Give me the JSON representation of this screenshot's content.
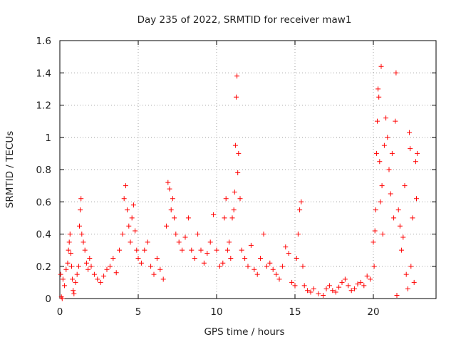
{
  "chart_data": {
    "type": "scatter",
    "title": "Day 235 of 2022, SRMTID for receiver maw1",
    "xlabel": "GPS time / hours",
    "ylabel": "SRMTID / TECUs",
    "xlim": [
      0,
      24
    ],
    "ylim": [
      0,
      1.6
    ],
    "xticks": [
      0,
      5,
      10,
      15,
      20
    ],
    "xtick_labels": [
      "0",
      "5",
      "10",
      "15",
      "20"
    ],
    "yticks": [
      0,
      0.2,
      0.4,
      0.6,
      0.8,
      1.0,
      1.2,
      1.4,
      1.6
    ],
    "ytick_labels": [
      "0",
      "0.2",
      "0.4",
      "0.6",
      "0.8",
      "1",
      "1.2",
      "1.4",
      "1.6"
    ],
    "grid": true,
    "marker": "plus",
    "color": "#ff0000",
    "series": [
      {
        "name": "maw1",
        "points": [
          [
            0.05,
            0.15
          ],
          [
            0.1,
            0.01
          ],
          [
            0.15,
            0.0
          ],
          [
            0.2,
            0.12
          ],
          [
            0.3,
            0.08
          ],
          [
            0.4,
            0.18
          ],
          [
            0.5,
            0.22
          ],
          [
            0.55,
            0.3
          ],
          [
            0.6,
            0.35
          ],
          [
            0.65,
            0.4
          ],
          [
            0.7,
            0.28
          ],
          [
            0.75,
            0.2
          ],
          [
            0.8,
            0.12
          ],
          [
            0.85,
            0.05
          ],
          [
            0.9,
            0.03
          ],
          [
            1.0,
            0.1
          ],
          [
            1.1,
            0.15
          ],
          [
            1.2,
            0.2
          ],
          [
            1.25,
            0.45
          ],
          [
            1.3,
            0.55
          ],
          [
            1.35,
            0.62
          ],
          [
            1.4,
            0.4
          ],
          [
            1.5,
            0.35
          ],
          [
            1.6,
            0.3
          ],
          [
            1.7,
            0.22
          ],
          [
            1.8,
            0.18
          ],
          [
            1.9,
            0.25
          ],
          [
            2.0,
            0.2
          ],
          [
            2.2,
            0.15
          ],
          [
            2.4,
            0.12
          ],
          [
            2.6,
            0.1
          ],
          [
            2.8,
            0.14
          ],
          [
            3.0,
            0.18
          ],
          [
            3.2,
            0.2
          ],
          [
            3.4,
            0.25
          ],
          [
            3.6,
            0.16
          ],
          [
            3.8,
            0.3
          ],
          [
            4.0,
            0.4
          ],
          [
            4.1,
            0.62
          ],
          [
            4.2,
            0.7
          ],
          [
            4.3,
            0.55
          ],
          [
            4.4,
            0.45
          ],
          [
            4.5,
            0.35
          ],
          [
            4.6,
            0.5
          ],
          [
            4.7,
            0.58
          ],
          [
            4.8,
            0.42
          ],
          [
            4.9,
            0.3
          ],
          [
            5.0,
            0.25
          ],
          [
            5.2,
            0.22
          ],
          [
            5.4,
            0.3
          ],
          [
            5.6,
            0.35
          ],
          [
            5.8,
            0.2
          ],
          [
            6.0,
            0.15
          ],
          [
            6.2,
            0.25
          ],
          [
            6.4,
            0.18
          ],
          [
            6.6,
            0.12
          ],
          [
            6.8,
            0.45
          ],
          [
            6.9,
            0.72
          ],
          [
            7.0,
            0.68
          ],
          [
            7.1,
            0.55
          ],
          [
            7.2,
            0.62
          ],
          [
            7.3,
            0.5
          ],
          [
            7.4,
            0.4
          ],
          [
            7.6,
            0.35
          ],
          [
            7.8,
            0.3
          ],
          [
            8.0,
            0.38
          ],
          [
            8.2,
            0.5
          ],
          [
            8.4,
            0.3
          ],
          [
            8.6,
            0.25
          ],
          [
            8.8,
            0.4
          ],
          [
            9.0,
            0.3
          ],
          [
            9.2,
            0.22
          ],
          [
            9.4,
            0.28
          ],
          [
            9.6,
            0.35
          ],
          [
            9.8,
            0.52
          ],
          [
            10.0,
            0.3
          ],
          [
            10.2,
            0.2
          ],
          [
            10.4,
            0.22
          ],
          [
            10.5,
            0.5
          ],
          [
            10.6,
            0.62
          ],
          [
            10.7,
            0.3
          ],
          [
            10.8,
            0.35
          ],
          [
            10.9,
            0.25
          ],
          [
            11.0,
            0.5
          ],
          [
            11.1,
            0.55
          ],
          [
            11.15,
            0.66
          ],
          [
            11.2,
            0.95
          ],
          [
            11.25,
            1.25
          ],
          [
            11.3,
            1.38
          ],
          [
            11.35,
            0.78
          ],
          [
            11.4,
            0.9
          ],
          [
            11.5,
            0.62
          ],
          [
            11.6,
            0.3
          ],
          [
            11.8,
            0.25
          ],
          [
            12.0,
            0.2
          ],
          [
            12.2,
            0.33
          ],
          [
            12.4,
            0.18
          ],
          [
            12.6,
            0.15
          ],
          [
            12.8,
            0.25
          ],
          [
            13.0,
            0.4
          ],
          [
            13.2,
            0.2
          ],
          [
            13.4,
            0.22
          ],
          [
            13.6,
            0.18
          ],
          [
            13.8,
            0.15
          ],
          [
            14.0,
            0.12
          ],
          [
            14.2,
            0.2
          ],
          [
            14.4,
            0.32
          ],
          [
            14.6,
            0.28
          ],
          [
            14.8,
            0.1
          ],
          [
            15.0,
            0.08
          ],
          [
            15.1,
            0.25
          ],
          [
            15.2,
            0.4
          ],
          [
            15.3,
            0.55
          ],
          [
            15.4,
            0.6
          ],
          [
            15.5,
            0.2
          ],
          [
            15.6,
            0.08
          ],
          [
            15.8,
            0.05
          ],
          [
            16.0,
            0.04
          ],
          [
            16.2,
            0.06
          ],
          [
            16.5,
            0.03
          ],
          [
            16.8,
            0.02
          ],
          [
            17.0,
            0.06
          ],
          [
            17.2,
            0.08
          ],
          [
            17.4,
            0.05
          ],
          [
            17.6,
            0.04
          ],
          [
            17.8,
            0.07
          ],
          [
            18.0,
            0.1
          ],
          [
            18.2,
            0.12
          ],
          [
            18.4,
            0.08
          ],
          [
            18.6,
            0.05
          ],
          [
            18.8,
            0.06
          ],
          [
            19.0,
            0.09
          ],
          [
            19.2,
            0.1
          ],
          [
            19.4,
            0.08
          ],
          [
            19.6,
            0.14
          ],
          [
            19.8,
            0.12
          ],
          [
            20.0,
            0.35
          ],
          [
            20.05,
            0.2
          ],
          [
            20.1,
            0.42
          ],
          [
            20.15,
            0.55
          ],
          [
            20.2,
            0.9
          ],
          [
            20.25,
            1.1
          ],
          [
            20.3,
            1.3
          ],
          [
            20.35,
            1.25
          ],
          [
            20.4,
            0.85
          ],
          [
            20.45,
            0.6
          ],
          [
            20.5,
            1.44
          ],
          [
            20.55,
            0.7
          ],
          [
            20.6,
            0.4
          ],
          [
            20.7,
            0.95
          ],
          [
            20.8,
            1.12
          ],
          [
            20.9,
            1.0
          ],
          [
            21.0,
            0.8
          ],
          [
            21.1,
            0.65
          ],
          [
            21.2,
            0.9
          ],
          [
            21.3,
            0.5
          ],
          [
            21.4,
            1.1
          ],
          [
            21.45,
            1.4
          ],
          [
            21.5,
            0.02
          ],
          [
            21.6,
            0.55
          ],
          [
            21.7,
            0.45
          ],
          [
            21.8,
            0.3
          ],
          [
            21.9,
            0.38
          ],
          [
            22.0,
            0.7
          ],
          [
            22.1,
            0.15
          ],
          [
            22.2,
            0.06
          ],
          [
            22.3,
            1.03
          ],
          [
            22.35,
            0.93
          ],
          [
            22.4,
            0.2
          ],
          [
            22.5,
            0.5
          ],
          [
            22.6,
            0.1
          ],
          [
            22.7,
            0.85
          ],
          [
            22.75,
            0.62
          ],
          [
            22.8,
            0.9
          ]
        ]
      }
    ]
  }
}
